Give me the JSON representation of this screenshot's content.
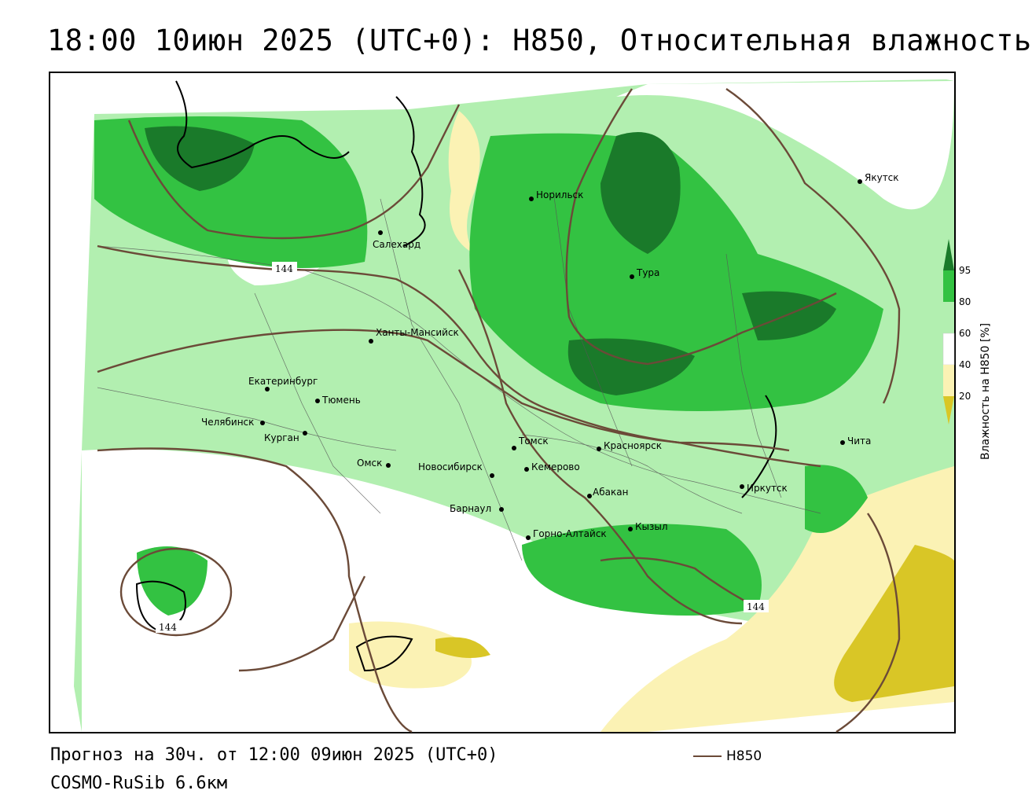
{
  "title": "18:00 10июн 2025 (UTC+0): H850, Относительная влажность",
  "footer": {
    "forecast": "Прогноз на 30ч. от 12:00 09июн 2025 (UTC+0)",
    "model": "COSMO-RuSib 6.6км"
  },
  "line_legend": {
    "label": "H850",
    "color": "#6b4a38"
  },
  "legend": {
    "title": "Влажность на H850 [%]",
    "ticks": [
      "95",
      "80",
      "60",
      "40",
      "20"
    ],
    "colors": {
      "gt95": "#1a7a2a",
      "80_95": "#33c242",
      "60_80": "#b2efb0",
      "40_60": "#ffffff",
      "20_40": "#fbf2b4",
      "lt20": "#d9c626"
    }
  },
  "cities": [
    {
      "name": "Якутск"
    },
    {
      "name": "Норильск"
    },
    {
      "name": "Салехард"
    },
    {
      "name": "Тура"
    },
    {
      "name": "Ханты-Мансийск"
    },
    {
      "name": "Екатеринбург"
    },
    {
      "name": "Тюмень"
    },
    {
      "name": "Челябинск"
    },
    {
      "name": "Курган"
    },
    {
      "name": "Омск"
    },
    {
      "name": "Новосибирск"
    },
    {
      "name": "Томск"
    },
    {
      "name": "Кемерово"
    },
    {
      "name": "Красноярск"
    },
    {
      "name": "Абакан"
    },
    {
      "name": "Барнаул"
    },
    {
      "name": "Горно-Алтайск"
    },
    {
      "name": "Кызыл"
    },
    {
      "name": "Иркутск"
    },
    {
      "name": "Чита"
    }
  ],
  "contour_labels": [
    "144",
    "144",
    "144"
  ]
}
